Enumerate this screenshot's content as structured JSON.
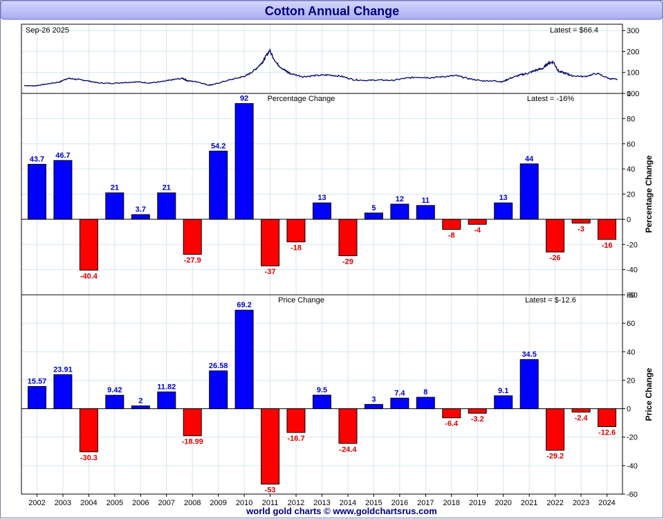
{
  "header": {
    "title": "Cotton Annual Change"
  },
  "footer": {
    "credit": "world gold charts © www.goldchartsrus.com"
  },
  "colors": {
    "positive": "#0000ff",
    "negative": "#ff0000",
    "positive_label": "#0000cc",
    "negative_label": "#dd0000",
    "price_line": "#000066",
    "title_text": "#000080",
    "title_bar": "#b9bdf5",
    "grid": "#d6e6ee"
  },
  "chart_data": [
    {
      "id": "price",
      "type": "line",
      "date_label": "Sep-26  2025",
      "latest_label": "Latest = $66.4",
      "ylim": [
        0,
        330
      ],
      "yticks": [
        0,
        100,
        200,
        300
      ],
      "xlim": [
        2001.5,
        2025.0
      ],
      "x": [
        2001.6,
        2002.0,
        2002.5,
        2003.0,
        2003.3,
        2003.6,
        2004.0,
        2004.5,
        2005.0,
        2005.5,
        2006.0,
        2006.5,
        2007.0,
        2007.4,
        2007.8,
        2008.0,
        2008.4,
        2008.8,
        2009.0,
        2009.5,
        2010.0,
        2010.3,
        2010.6,
        2010.9,
        2011.0,
        2011.2,
        2011.5,
        2011.8,
        2012.0,
        2012.5,
        2013.0,
        2013.5,
        2014.0,
        2014.5,
        2015.0,
        2015.5,
        2016.0,
        2016.5,
        2017.0,
        2017.5,
        2018.0,
        2018.5,
        2019.0,
        2019.5,
        2020.0,
        2020.3,
        2020.6,
        2021.0,
        2021.3,
        2021.6,
        2021.9,
        2022.1,
        2022.3,
        2022.5,
        2022.8,
        2023.0,
        2023.5,
        2024.0,
        2024.5,
        2024.8
      ],
      "values": [
        38,
        36,
        45,
        55,
        72,
        68,
        62,
        50,
        48,
        52,
        55,
        50,
        56,
        65,
        72,
        60,
        55,
        40,
        42,
        60,
        75,
        85,
        110,
        145,
        165,
        205,
        140,
        110,
        95,
        80,
        85,
        88,
        82,
        65,
        62,
        64,
        62,
        72,
        78,
        75,
        80,
        85,
        70,
        60,
        60,
        55,
        72,
        88,
        96,
        110,
        120,
        145,
        150,
        105,
        95,
        85,
        80,
        95,
        70,
        67
      ]
    },
    {
      "id": "pct",
      "type": "bar",
      "title": "Percentage Change",
      "latest_label": "Latest = -16%",
      "ylabel": "Percentage Change",
      "categories": [
        "2002",
        "2003",
        "2004",
        "2005",
        "2006",
        "2007",
        "2008",
        "2009",
        "2010",
        "2011",
        "2012",
        "2013",
        "2014",
        "2015",
        "2016",
        "2017",
        "2018",
        "2019",
        "2020",
        "2021",
        "2022",
        "2023",
        "2024"
      ],
      "values": [
        43.7,
        46.7,
        -40.4,
        21,
        3.7,
        21,
        -27.9,
        54.2,
        92,
        -37,
        -18,
        13,
        -29,
        5,
        12,
        11,
        -8,
        -4,
        13,
        44,
        -26,
        -3,
        -16
      ],
      "labels": [
        "43.7",
        "46.7",
        "-40.4",
        "21",
        "3.7",
        "21",
        "-27.9",
        "54.2",
        "92",
        "-37",
        "-18",
        "13",
        "-29",
        "5",
        "12",
        "11",
        "-8",
        "-4",
        "13",
        "44",
        "-26",
        "-3",
        "-16"
      ],
      "ylim": [
        -60,
        100
      ],
      "yticks": [
        -60,
        -40,
        -20,
        0,
        20,
        40,
        60,
        80,
        100
      ]
    },
    {
      "id": "chg",
      "type": "bar",
      "title": "Price Change",
      "latest_label": "Latest = $-12.6",
      "ylabel": "Price Change",
      "categories": [
        "2002",
        "2003",
        "2004",
        "2005",
        "2006",
        "2007",
        "2008",
        "2009",
        "2010",
        "2011",
        "2012",
        "2013",
        "2014",
        "2015",
        "2016",
        "2017",
        "2018",
        "2019",
        "2020",
        "2021",
        "2022",
        "2023",
        "2024"
      ],
      "values": [
        15.57,
        23.91,
        -30.3,
        9.42,
        2,
        11.82,
        -18.99,
        26.58,
        69.2,
        -53,
        -16.7,
        9.5,
        -24.4,
        3,
        7.4,
        8,
        -6.4,
        -3.2,
        9.1,
        34.5,
        -29.2,
        -2.4,
        -12.6
      ],
      "labels": [
        "15.57",
        "23.91",
        "-30.3",
        "9.42",
        "2",
        "11.82",
        "-18.99",
        "26.58",
        "69.2",
        "-53",
        "-16.7",
        "9.5",
        "-24.4",
        "3",
        "7.4",
        "8",
        "-6.4",
        "-3.2",
        "9.1",
        "34.5",
        "-29.2",
        "-2.4",
        "-12.6"
      ],
      "ylim": [
        -60,
        80
      ],
      "yticks": [
        -60,
        -40,
        -20,
        0,
        20,
        40,
        60,
        80
      ]
    }
  ]
}
